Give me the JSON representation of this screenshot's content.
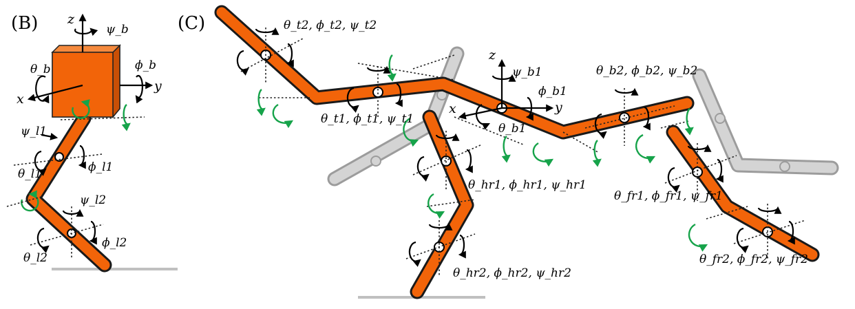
{
  "panels": {
    "b_label": "(B)",
    "c_label": "(C)"
  },
  "panel_b": {
    "axis_z": "z",
    "axis_x": "x",
    "axis_y": "y",
    "psi_b": "ψ_b",
    "theta_b": "θ_b",
    "phi_b": "ϕ_b",
    "psi_l1": "ψ_l1",
    "theta_l1": "θ_l1",
    "phi_l1": "ϕ_l1",
    "psi_l2": "ψ_l2",
    "theta_l2": "θ_l2",
    "phi_l2": "ϕ_l2"
  },
  "panel_c": {
    "axis_z": "z",
    "axis_x": "x",
    "axis_y": "y",
    "psi_b1": "ψ_b1",
    "phi_b1": "ϕ_b1",
    "theta_b1": "θ_b1",
    "tail2": "θ_t2, ϕ_t2, ψ_t2",
    "tail1": "θ_t1, ϕ_t1, ψ_t1",
    "body2": "θ_b2, ϕ_b2, ψ_b2",
    "hind1": "θ_hr1, ϕ_hr1, ψ_hr1",
    "hind2": "θ_hr2, ϕ_hr2, ψ_hr2",
    "fore1": "θ_fr1, ϕ_fr1, ψ_fr1",
    "fore2": "θ_fr2, ϕ_fr2, ψ_fr2"
  },
  "colors": {
    "limb": "#f26409",
    "ghost_limb": "#d4d4d4",
    "green_arrow": "#16a34a",
    "ground": "#c0c0c0"
  }
}
